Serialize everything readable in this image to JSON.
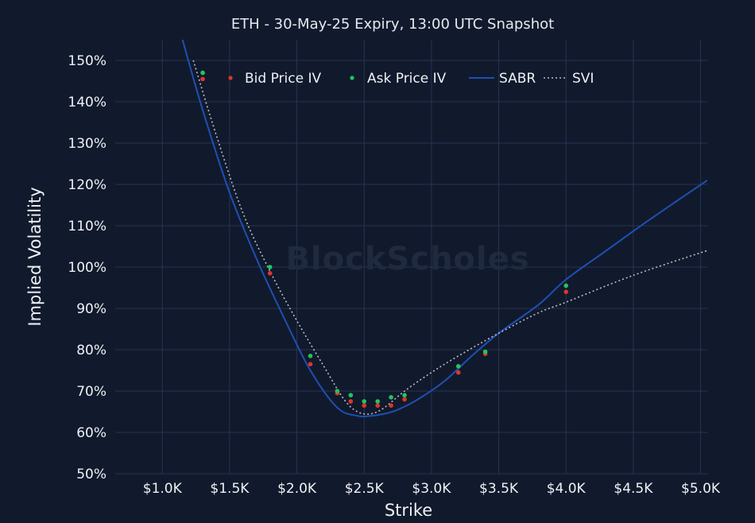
{
  "chart_data": {
    "type": "scatter",
    "title": "ETH - 30-May-25 Expiry, 13:00 UTC Snapshot",
    "xlabel": "Strike",
    "ylabel": "Implied Volatility",
    "watermark": "BlockScholes",
    "xlim": [
      650,
      5050
    ],
    "ylim": [
      50,
      155
    ],
    "x_ticks": [
      1000,
      1500,
      2000,
      2500,
      3000,
      3500,
      4000,
      4500,
      5000
    ],
    "x_tick_labels": [
      "$1.0K",
      "$1.5K",
      "$2.0K",
      "$2.5K",
      "$3.0K",
      "$3.5K",
      "$4.0K",
      "$4.5K",
      "$5.0K"
    ],
    "y_ticks": [
      50,
      60,
      70,
      80,
      90,
      100,
      110,
      120,
      130,
      140,
      150
    ],
    "y_tick_labels": [
      "50%",
      "60%",
      "70%",
      "80%",
      "90%",
      "100%",
      "110%",
      "120%",
      "130%",
      "140%",
      "150%"
    ],
    "grid": true,
    "legend_position": "top",
    "series": [
      {
        "name": "Bid Price IV",
        "kind": "markers",
        "color": "#e0332e",
        "x": [
          1300,
          1800,
          2100,
          2300,
          2400,
          2500,
          2600,
          2700,
          2800,
          3200,
          3400,
          4000
        ],
        "y": [
          145.5,
          98.5,
          76.5,
          69.5,
          67.5,
          66.5,
          66.5,
          66.5,
          68.0,
          74.5,
          79.0,
          94.0
        ]
      },
      {
        "name": "Ask Price IV",
        "kind": "markers",
        "color": "#22c55e",
        "x": [
          1300,
          1800,
          2100,
          2300,
          2400,
          2500,
          2600,
          2700,
          2800,
          3200,
          3400,
          4000
        ],
        "y": [
          147.0,
          100.0,
          78.5,
          70.0,
          69.0,
          67.5,
          67.5,
          68.5,
          69.0,
          76.0,
          79.5,
          95.5
        ]
      },
      {
        "name": "SABR",
        "kind": "line",
        "color": "#1f4fb3",
        "dash": "solid",
        "x": [
          1150,
          1300,
          1500,
          1700,
          1900,
          2100,
          2300,
          2450,
          2550,
          2650,
          2750,
          2900,
          3100,
          3300,
          3500,
          3800,
          4000,
          4300,
          4600,
          5050
        ],
        "y": [
          155,
          138,
          118,
          102,
          88,
          75,
          66,
          64,
          64,
          64.5,
          65.5,
          68,
          72.5,
          78.5,
          84,
          91,
          97,
          104,
          111,
          121
        ]
      },
      {
        "name": "SVI",
        "kind": "line",
        "color": "#b8bcc4",
        "dash": "dotted",
        "x": [
          1230,
          1400,
          1600,
          1800,
          2000,
          2200,
          2350,
          2450,
          2550,
          2650,
          2800,
          3000,
          3200,
          3500,
          3800,
          4000,
          4500,
          5050
        ],
        "y": [
          150,
          132,
          113,
          99,
          87,
          76,
          68,
          65,
          64.5,
          66,
          70,
          74.5,
          78.5,
          84,
          89,
          91.5,
          98,
          104
        ]
      }
    ]
  }
}
